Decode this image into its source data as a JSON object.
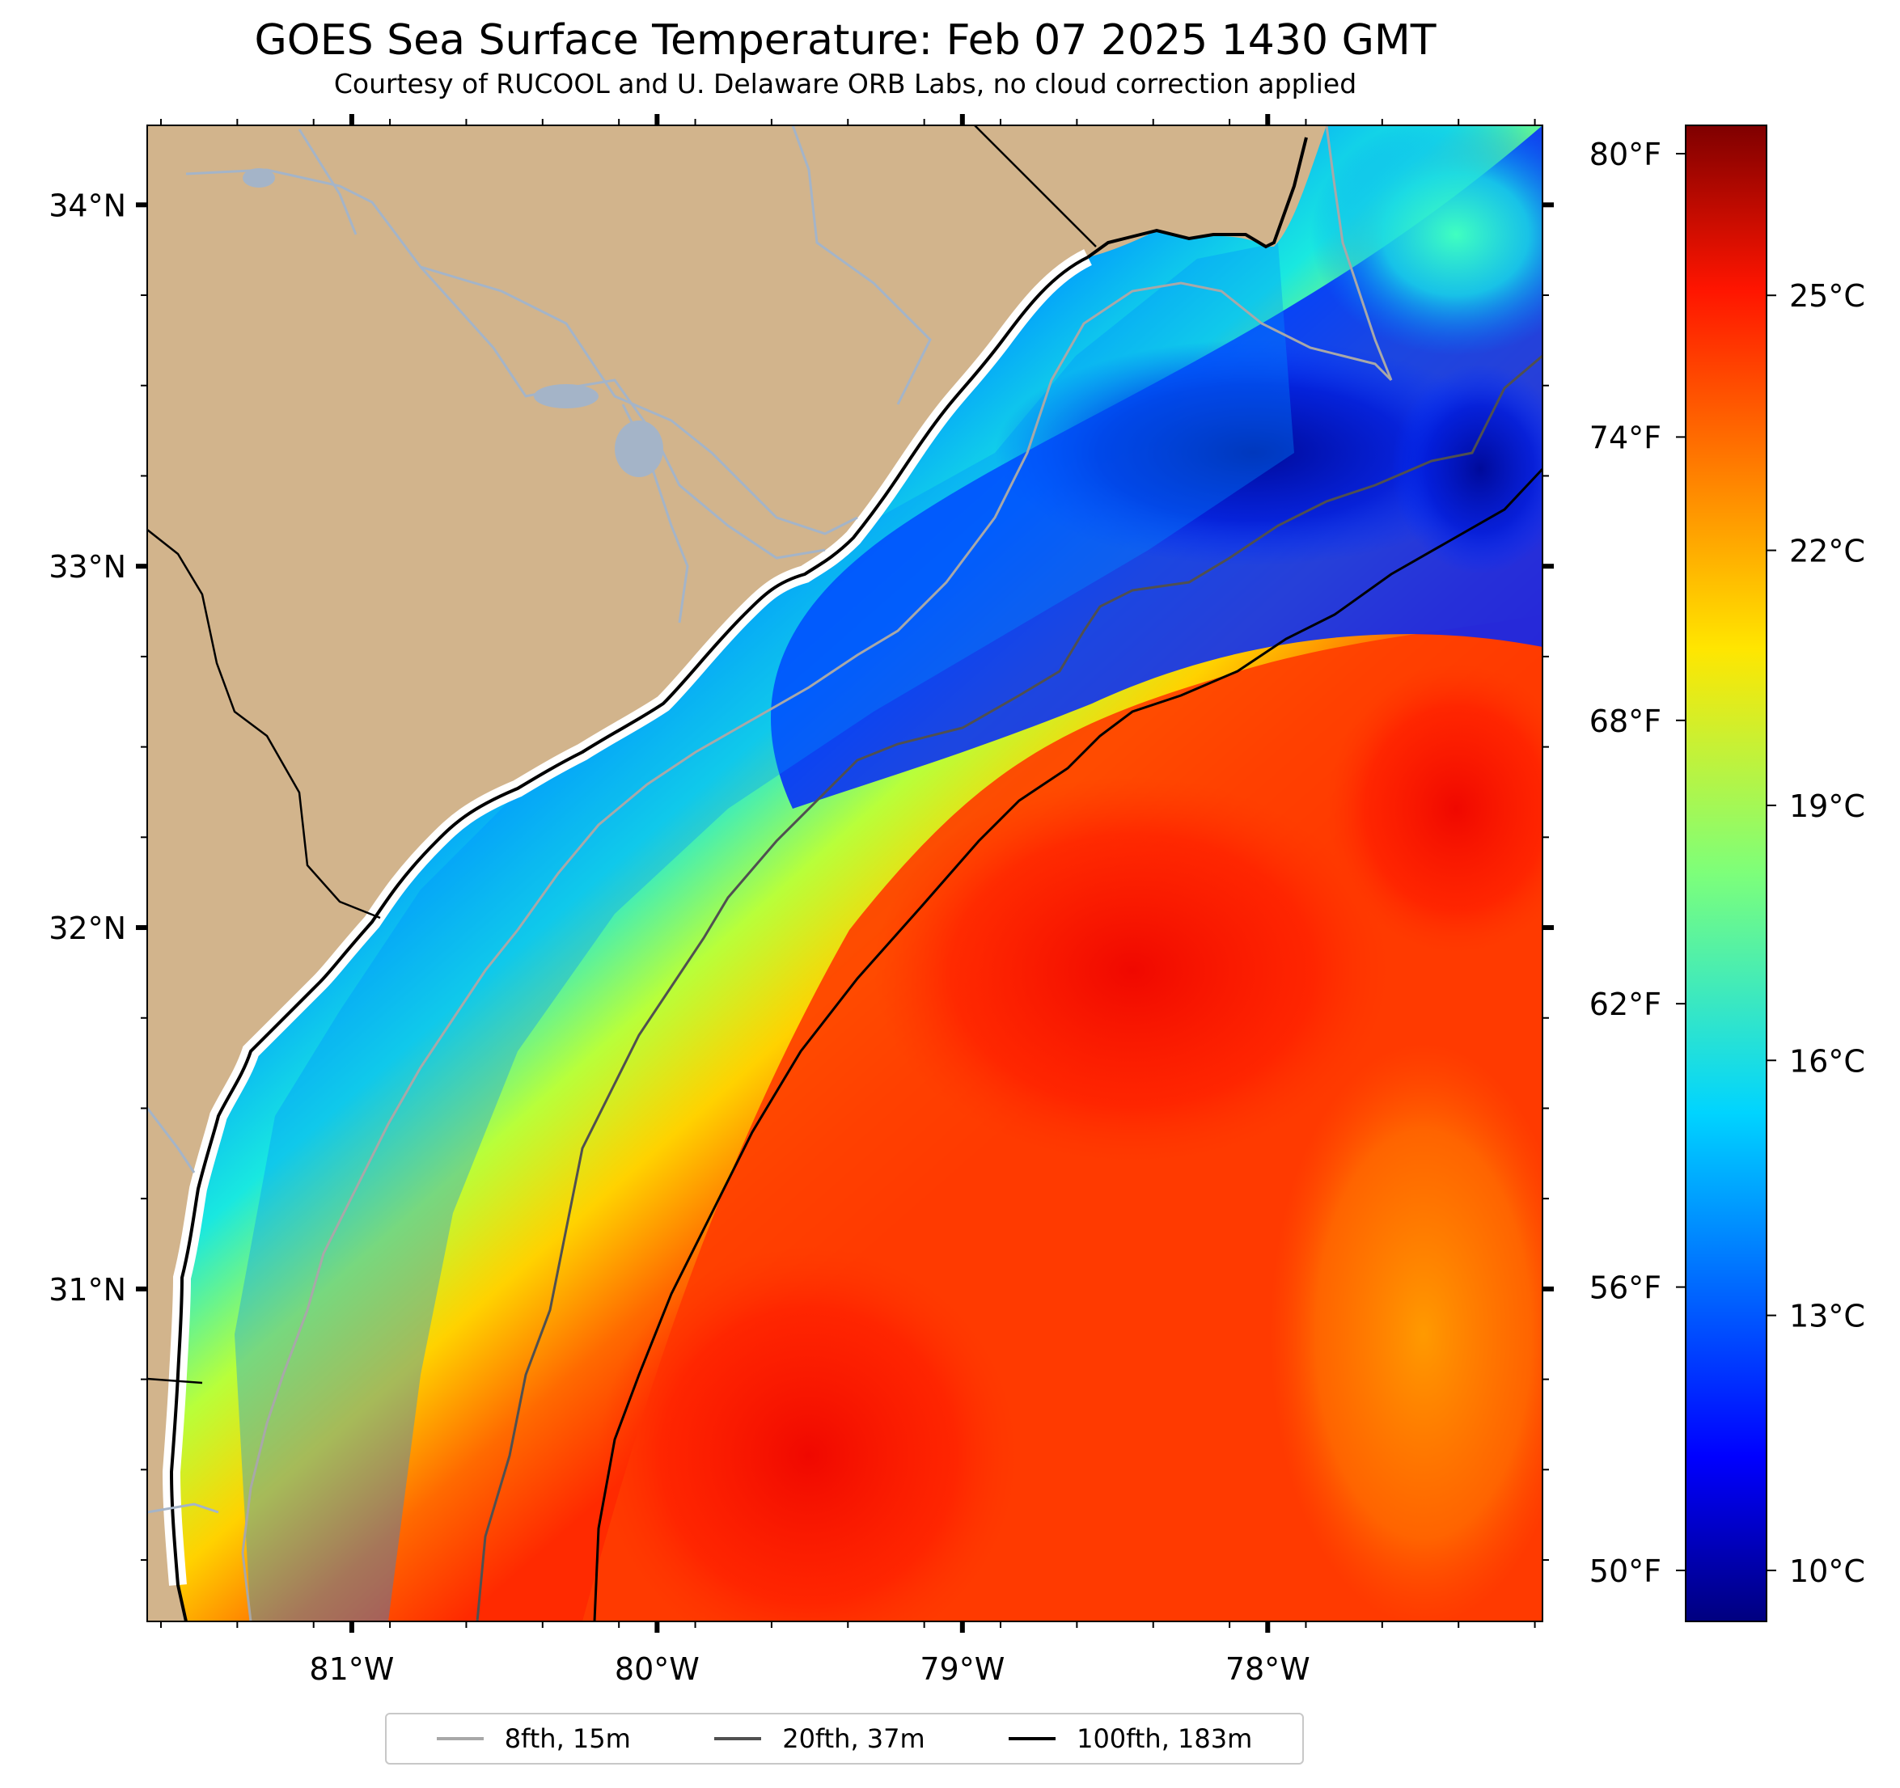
{
  "title": "GOES Sea Surface Temperature: Feb 07 2025 1430 GMT",
  "subtitle": "Courtesy of RUCOOL and U. Delaware ORB Labs, no cloud correction applied",
  "map": {
    "lon_range": [
      -81.67,
      -77.1
    ],
    "lat_range": [
      30.08,
      34.22
    ],
    "lon_ticks": [
      "81°W",
      "80°W",
      "79°W",
      "78°W"
    ],
    "lat_ticks": [
      "34°N",
      "33°N",
      "32°N",
      "31°N"
    ],
    "land_color": "#d2b48c",
    "river_color": "#a4b4c8",
    "coast_color": "#000000"
  },
  "colorbar": {
    "min_c": 9.4,
    "max_c": 27.0,
    "celsius_labels": [
      "25°C",
      "22°C",
      "19°C",
      "16°C",
      "13°C",
      "10°C"
    ],
    "celsius_values": [
      25,
      22,
      19,
      16,
      13,
      10
    ],
    "fahrenheit_labels": [
      "80°F",
      "74°F",
      "68°F",
      "62°F",
      "56°F",
      "50°F"
    ],
    "fahrenheit_values": [
      80,
      74,
      68,
      62,
      56,
      50
    ],
    "colormap": "jet"
  },
  "legend": [
    {
      "label": "8fth, 15m",
      "color": "#a8a8a8"
    },
    {
      "label": "20fth, 37m",
      "color": "#505050"
    },
    {
      "label": "100fth, 183m",
      "color": "#000000"
    }
  ]
}
